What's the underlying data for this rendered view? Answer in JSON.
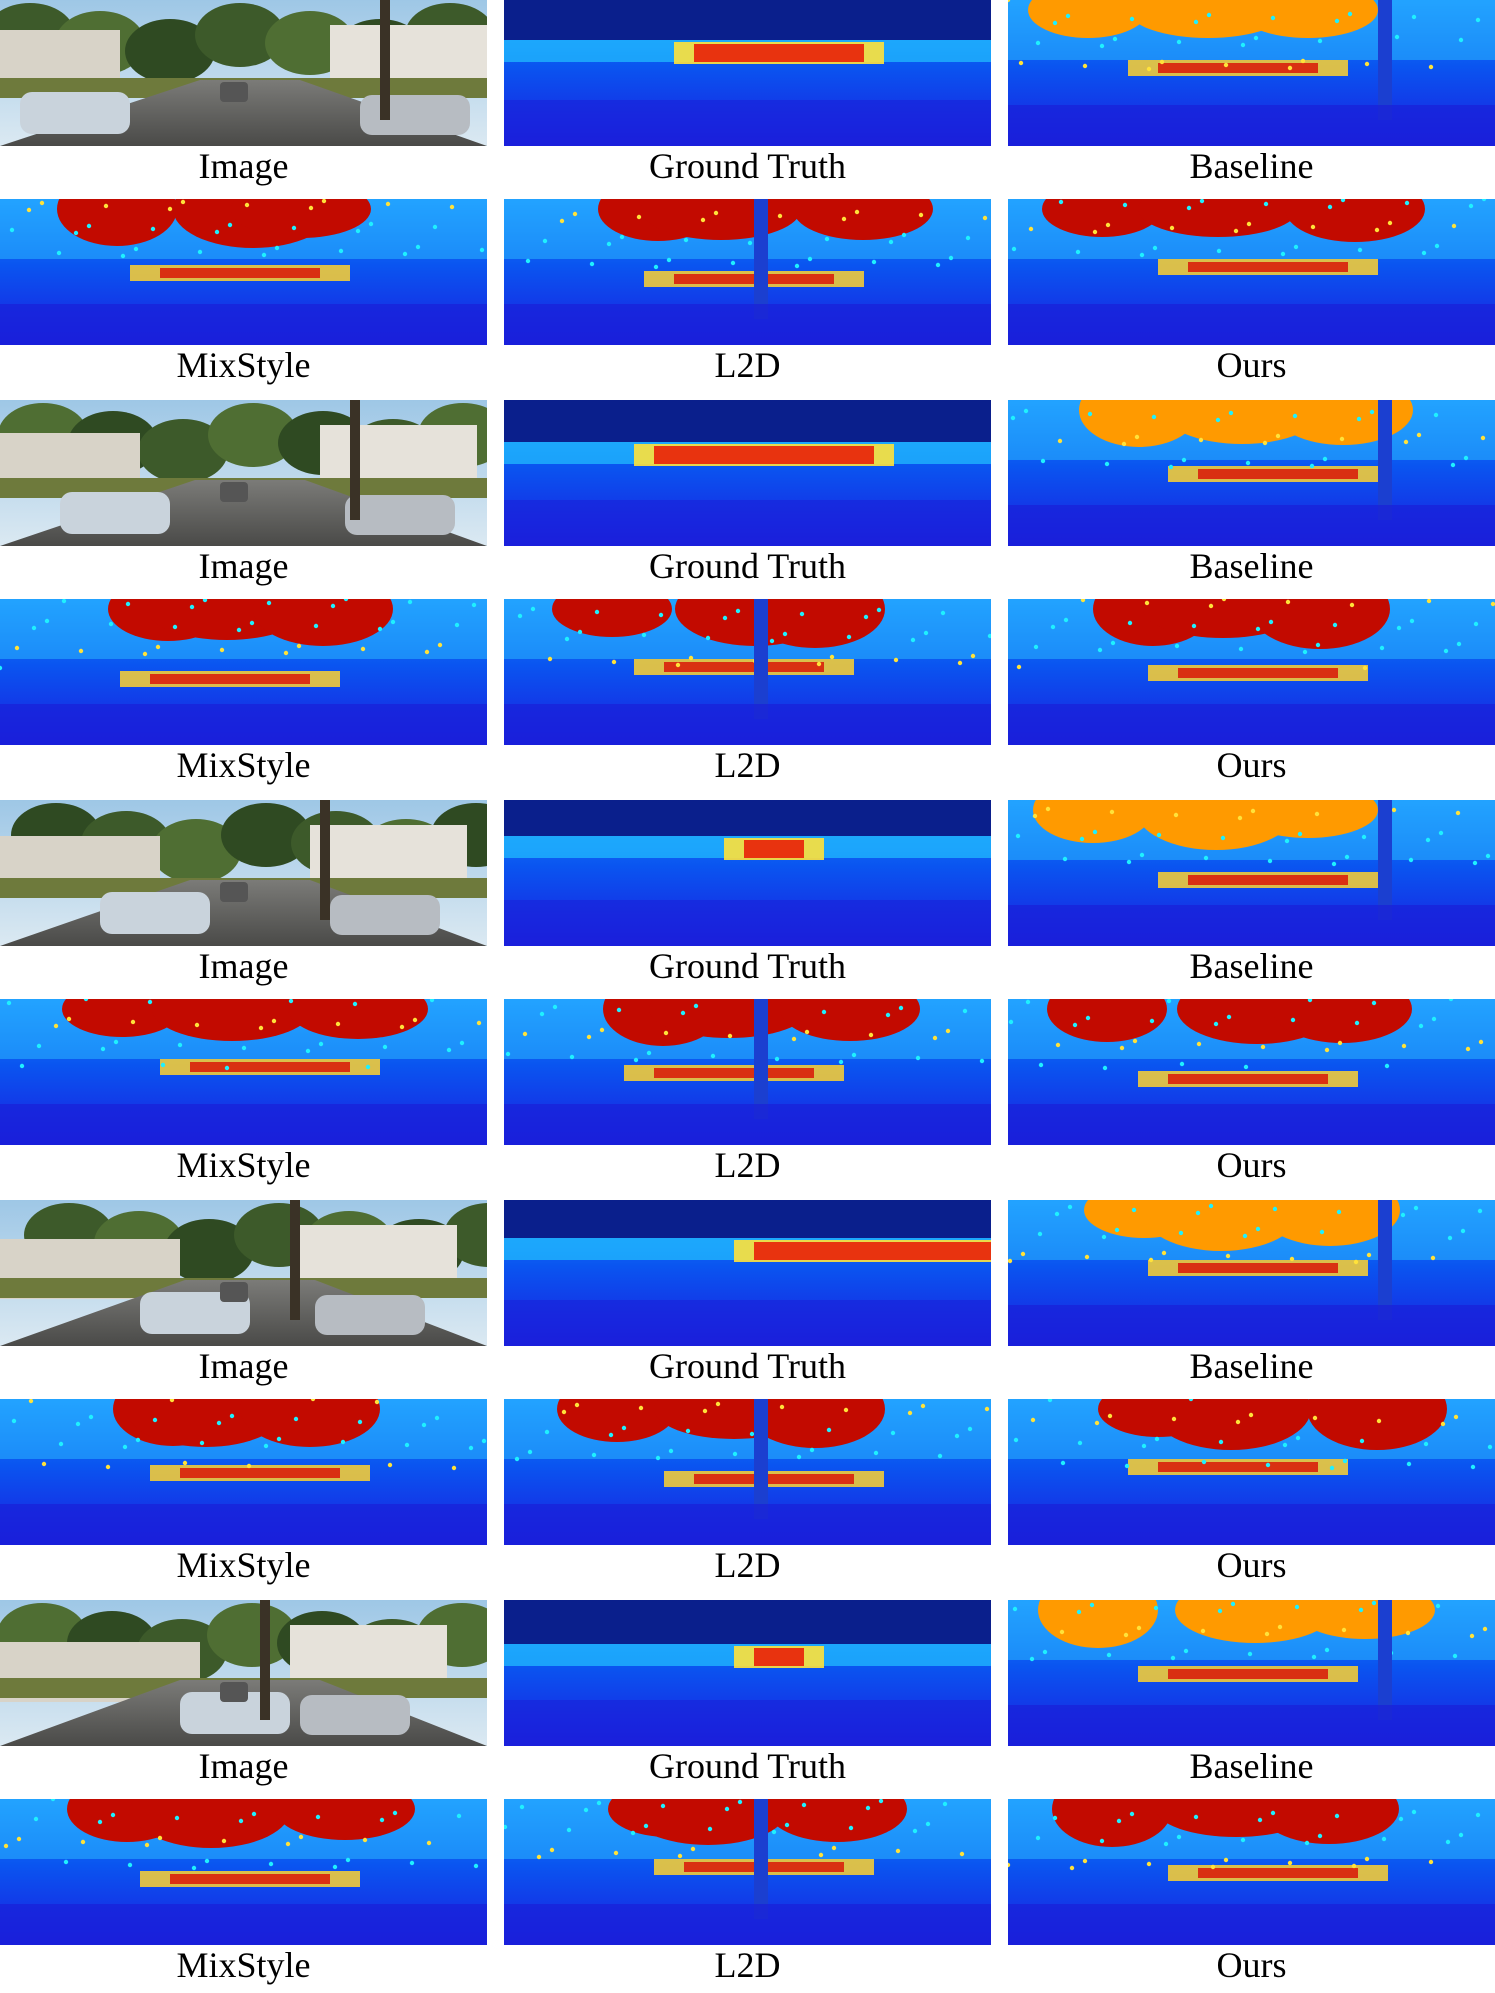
{
  "groups": [
    {
      "row1": [
        {
          "caption": "Image",
          "kind": "photo",
          "variant": 0
        },
        {
          "caption": "Ground Truth",
          "kind": "gt",
          "variant": 0
        },
        {
          "caption": "Baseline",
          "kind": "pred",
          "variant": 0
        }
      ],
      "row2": [
        {
          "caption": "MixStyle",
          "kind": "pred",
          "variant": 1
        },
        {
          "caption": "L2D",
          "kind": "pred",
          "variant": 2
        },
        {
          "caption": "Ours",
          "kind": "pred",
          "variant": 3
        }
      ]
    },
    {
      "row1": [
        {
          "caption": "Image",
          "kind": "photo",
          "variant": 1
        },
        {
          "caption": "Ground Truth",
          "kind": "gt",
          "variant": 1
        },
        {
          "caption": "Baseline",
          "kind": "pred",
          "variant": 4
        }
      ],
      "row2": [
        {
          "caption": "MixStyle",
          "kind": "pred",
          "variant": 5
        },
        {
          "caption": "L2D",
          "kind": "pred",
          "variant": 6
        },
        {
          "caption": "Ours",
          "kind": "pred",
          "variant": 7
        }
      ]
    },
    {
      "row1": [
        {
          "caption": "Image",
          "kind": "photo",
          "variant": 2
        },
        {
          "caption": "Ground Truth",
          "kind": "gt",
          "variant": 2
        },
        {
          "caption": "Baseline",
          "kind": "pred",
          "variant": 8
        }
      ],
      "row2": [
        {
          "caption": "MixStyle",
          "kind": "pred",
          "variant": 9
        },
        {
          "caption": "L2D",
          "kind": "pred",
          "variant": 10
        },
        {
          "caption": "Ours",
          "kind": "pred",
          "variant": 11
        }
      ]
    },
    {
      "row1": [
        {
          "caption": "Image",
          "kind": "photo",
          "variant": 3
        },
        {
          "caption": "Ground Truth",
          "kind": "gt",
          "variant": 3
        },
        {
          "caption": "Baseline",
          "kind": "pred",
          "variant": 12
        }
      ],
      "row2": [
        {
          "caption": "MixStyle",
          "kind": "pred",
          "variant": 13
        },
        {
          "caption": "L2D",
          "kind": "pred",
          "variant": 14
        },
        {
          "caption": "Ours",
          "kind": "pred",
          "variant": 15
        }
      ]
    },
    {
      "row1": [
        {
          "caption": "Image",
          "kind": "photo",
          "variant": 4
        },
        {
          "caption": "Ground Truth",
          "kind": "gt",
          "variant": 4
        },
        {
          "caption": "Baseline",
          "kind": "pred",
          "variant": 16
        }
      ],
      "row2": [
        {
          "caption": "MixStyle",
          "kind": "pred",
          "variant": 17
        },
        {
          "caption": "L2D",
          "kind": "pred",
          "variant": 18
        },
        {
          "caption": "Ours",
          "kind": "pred",
          "variant": 19
        }
      ]
    }
  ]
}
